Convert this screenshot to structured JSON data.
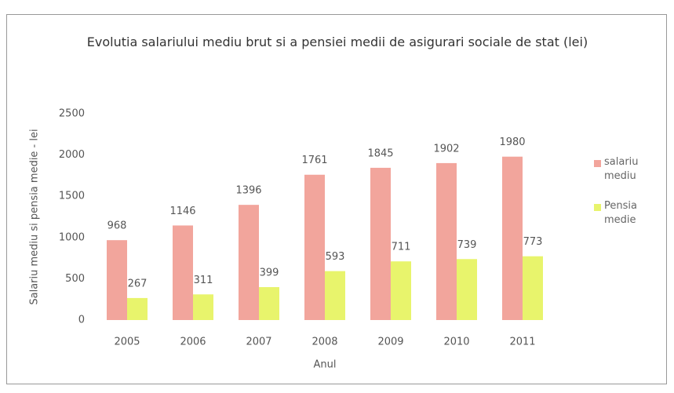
{
  "chart_data": {
    "type": "bar",
    "title": "Evolutia salariului mediu brut si a pensiei medii de asigurari sociale de stat (lei)",
    "x_label": "Anul",
    "y_label": "Salariu mediu si pensia medie - lei",
    "categories": [
      "2005",
      "2006",
      "2007",
      "2008",
      "2009",
      "2010",
      "2011"
    ],
    "series": [
      {
        "name": "salariu mediu",
        "color": "#f2a59c",
        "values": [
          968,
          1146,
          1396,
          1761,
          1845,
          1902,
          1980
        ]
      },
      {
        "name": "Pensia medie",
        "color": "#e8f46c",
        "values": [
          267,
          311,
          399,
          593,
          711,
          739,
          773
        ]
      }
    ],
    "ylim": [
      0,
      2500
    ],
    "yticks": [
      0,
      500,
      1000,
      1500,
      2000,
      2500
    ],
    "grid": false,
    "legend": "right"
  }
}
